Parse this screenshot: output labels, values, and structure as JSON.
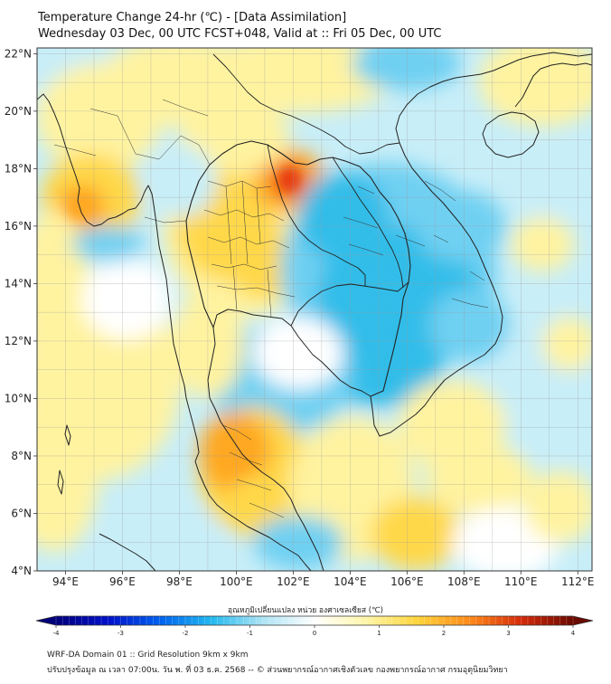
{
  "title_line1": "Temperature Change 24-hr (℃) - [Data Assimilation]",
  "title_line2": "Wednesday 03 Dec, 00 UTC FCST+048, Valid at :: Fri 05 Dec, 00 UTC",
  "map": {
    "lon_ticks": [
      "94°E",
      "96°E",
      "98°E",
      "100°E",
      "102°E",
      "104°E",
      "106°E",
      "108°E",
      "110°E",
      "112°E"
    ],
    "lat_ticks": [
      "22°N",
      "20°N",
      "18°N",
      "16°N",
      "14°N",
      "12°N",
      "10°N",
      "8°N",
      "6°N",
      "4°N"
    ],
    "lon_values": [
      94,
      96,
      98,
      100,
      102,
      104,
      106,
      108,
      110,
      112
    ],
    "lat_values": [
      22,
      20,
      18,
      16,
      14,
      12,
      10,
      8,
      6,
      4
    ],
    "lon_range": [
      93.0,
      112.5
    ],
    "lat_range": [
      4.0,
      22.2
    ],
    "gridlines": true
  },
  "colorbar": {
    "label": "อุณหภูมิเปลี่ยนแปลง หน่วย องศาเซลเซียส (℃)",
    "ticks": [
      "-4",
      "-3",
      "-2",
      "-1",
      "0",
      "1",
      "2",
      "3",
      "4"
    ],
    "tick_values": [
      -4,
      -3,
      -2,
      -1,
      0,
      1,
      2,
      3,
      4
    ],
    "min": -4,
    "max": 4,
    "extend": "both",
    "colors": [
      "#00007a",
      "#0010c8",
      "#0060ee",
      "#22b8ee",
      "#aee4f4",
      "#ffffff",
      "#fff6a8",
      "#ffd43a",
      "#ff8a1a",
      "#d42a0a",
      "#6a0a00"
    ]
  },
  "footer_line1": "WRF-DA Domain 01 :: Grid Resolution 9km x 9km",
  "footer_line2": "ปรับปรุงข้อมูล ณ เวลา 07:00น. วัน พ. ที่ 03 ธ.ค. 2568 -- © ส่วนพยากรณ์อากาศเชิงตัวเลข กองพยากรณ์อากาศ กรมอุตุนิยมวิทยา",
  "field_colors": {
    "warm_light": "#fff3a0",
    "warm": "#ffd84a",
    "warm_strong": "#ffa820",
    "hot": "#e83a10",
    "cool_light": "#c8eef8",
    "cool": "#6fd0f2",
    "cool_strong": "#33bde9"
  }
}
